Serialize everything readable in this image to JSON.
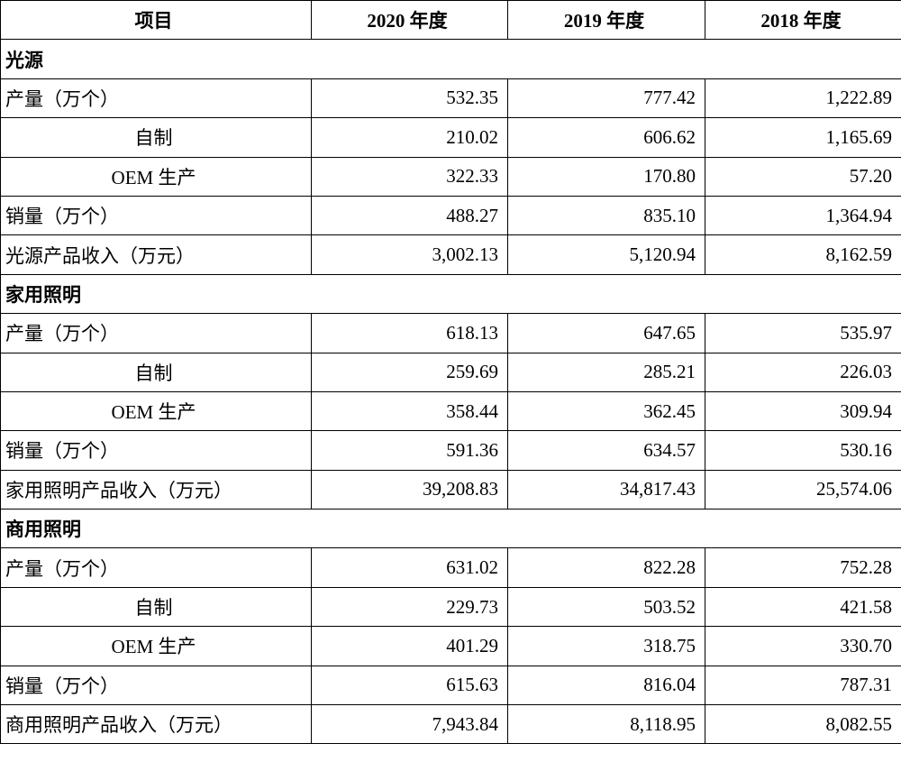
{
  "header": [
    "项目",
    "2020 年度",
    "2019 年度",
    "2018 年度"
  ],
  "sections": [
    {
      "title": "光源",
      "rows": [
        {
          "label": "产量（万个）",
          "values": [
            "532.35",
            "777.42",
            "1,222.89"
          ],
          "breakdown": [
            {
              "label": "自制",
              "values": [
                "210.02",
                "606.62",
                "1,165.69"
              ]
            },
            {
              "label": "OEM 生产",
              "values": [
                "322.33",
                "170.80",
                "57.20"
              ]
            }
          ]
        },
        {
          "label": "销量（万个）",
          "values": [
            "488.27",
            "835.10",
            "1,364.94"
          ]
        },
        {
          "label": "光源产品收入（万元）",
          "values": [
            "3,002.13",
            "5,120.94",
            "8,162.59"
          ]
        }
      ]
    },
    {
      "title": "家用照明",
      "rows": [
        {
          "label": "产量（万个）",
          "values": [
            "618.13",
            "647.65",
            "535.97"
          ],
          "breakdown": [
            {
              "label": "自制",
              "values": [
                "259.69",
                "285.21",
                "226.03"
              ]
            },
            {
              "label": "OEM 生产",
              "values": [
                "358.44",
                "362.45",
                "309.94"
              ]
            }
          ]
        },
        {
          "label": "销量（万个）",
          "values": [
            "591.36",
            "634.57",
            "530.16"
          ]
        },
        {
          "label": "家用照明产品收入（万元）",
          "values": [
            "39,208.83",
            "34,817.43",
            "25,574.06"
          ]
        }
      ]
    },
    {
      "title": "商用照明",
      "rows": [
        {
          "label": "产量（万个）",
          "values": [
            "631.02",
            "822.28",
            "752.28"
          ],
          "breakdown": [
            {
              "label": "自制",
              "values": [
                "229.73",
                "503.52",
                "421.58"
              ]
            },
            {
              "label": "OEM 生产",
              "values": [
                "401.29",
                "318.75",
                "330.70"
              ]
            }
          ]
        },
        {
          "label": "销量（万个）",
          "values": [
            "615.63",
            "816.04",
            "787.31"
          ]
        },
        {
          "label": "商用照明产品收入（万元）",
          "values": [
            "7,943.84",
            "8,118.95",
            "8,082.55"
          ]
        }
      ]
    }
  ]
}
